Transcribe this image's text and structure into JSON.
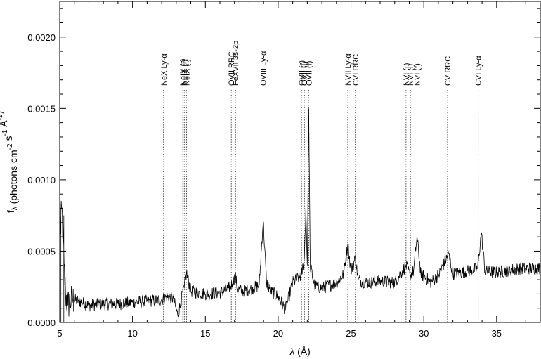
{
  "chart_data": {
    "type": "line",
    "title": "",
    "xlabel": "λ (Å)",
    "ylabel": "f_λ (photons cm^-2 s^-1 Å^-1)",
    "xlim": [
      5,
      38
    ],
    "ylim": [
      0,
      0.00225
    ],
    "grid": false,
    "x_ticks": [
      5,
      10,
      15,
      20,
      25,
      30,
      35
    ],
    "x_tick_labels": [
      "5",
      "10",
      "15",
      "20",
      "25",
      "30",
      "35"
    ],
    "y_ticks": [
      0,
      0.0005,
      0.001,
      0.0015,
      0.002
    ],
    "y_tick_labels": [
      "0.0000",
      "0.0005",
      "0.0010",
      "0.0015",
      "0.0020"
    ],
    "line_color": "#000000",
    "spectrum_nodes": {
      "x": [
        5.0,
        5.15,
        5.3,
        5.4,
        5.55,
        5.7,
        5.9,
        6.3,
        7.0,
        8.0,
        9.0,
        10.0,
        11.0,
        12.0,
        12.3,
        12.8,
        13.1,
        13.3,
        13.45,
        13.55,
        13.7,
        14.0,
        15.0,
        16.0,
        16.6,
        16.85,
        17.05,
        17.2,
        17.5,
        18.0,
        18.7,
        18.97,
        19.2,
        19.5,
        20.0,
        20.5,
        21.0,
        21.6,
        21.8,
        21.9,
        22.0,
        22.1,
        22.2,
        22.5,
        23.0,
        24.0,
        24.5,
        24.78,
        25.0,
        25.3,
        25.5,
        26.0,
        27.0,
        28.0,
        28.78,
        29.05,
        29.3,
        29.53,
        29.8,
        30.5,
        31.0,
        31.7,
        32.0,
        33.0,
        33.7,
        33.95,
        34.2,
        35.0,
        36.0,
        37.0,
        38.0
      ],
      "y": [
        0.0006,
        0.0008,
        0.0004,
        0.0002,
        0.00012,
        0.00015,
        0.00016,
        0.00015,
        0.00012,
        0.00013,
        0.00013,
        0.00014,
        0.00015,
        0.00016,
        0.00018,
        0.00017,
        5e-05,
        0.00013,
        0.00022,
        0.00024,
        0.00035,
        0.00022,
        0.0002,
        0.00021,
        0.00024,
        0.00027,
        0.00033,
        0.00024,
        0.00022,
        0.00023,
        0.00026,
        0.00072,
        0.00028,
        0.00022,
        0.00018,
        9e-05,
        0.00028,
        0.00033,
        0.00045,
        0.0008,
        0.0004,
        0.0015,
        0.0004,
        0.00026,
        0.00024,
        0.00028,
        0.00034,
        0.00055,
        0.00036,
        0.00045,
        0.0003,
        0.00028,
        0.00029,
        0.00028,
        0.0004,
        0.00033,
        0.00036,
        0.0006,
        0.00034,
        0.00028,
        0.00033,
        0.00048,
        0.00034,
        0.00036,
        0.00038,
        0.00063,
        0.00036,
        0.00035,
        0.00037,
        0.00038,
        0.00038
      ]
    },
    "annotations": [
      {
        "x": 12.13,
        "label": "NeX Ly-α"
      },
      {
        "x": 13.45,
        "label": "NeIX (r)"
      },
      {
        "x": 13.55,
        "label": "NeIX (i)"
      },
      {
        "x": 13.7,
        "label": "NeIX (f)"
      },
      {
        "x": 16.78,
        "label": "OVII RRC"
      },
      {
        "x": 17.07,
        "label": "FeXVII 3s-2p"
      },
      {
        "x": 18.97,
        "label": "OVIII Ly-α"
      },
      {
        "x": 21.6,
        "label": "OVII (r)"
      },
      {
        "x": 21.8,
        "label": "OVII (i)"
      },
      {
        "x": 22.1,
        "label": "OVII (f)"
      },
      {
        "x": 24.78,
        "label": "NVII Ly-α"
      },
      {
        "x": 25.3,
        "label": "CVI RRC"
      },
      {
        "x": 28.78,
        "label": "NVI (r)"
      },
      {
        "x": 29.08,
        "label": "NVI (i)"
      },
      {
        "x": 29.53,
        "label": "NVI (f)"
      },
      {
        "x": 31.63,
        "label": "CV RRC"
      },
      {
        "x": 33.74,
        "label": "CVI Ly-α"
      }
    ]
  }
}
